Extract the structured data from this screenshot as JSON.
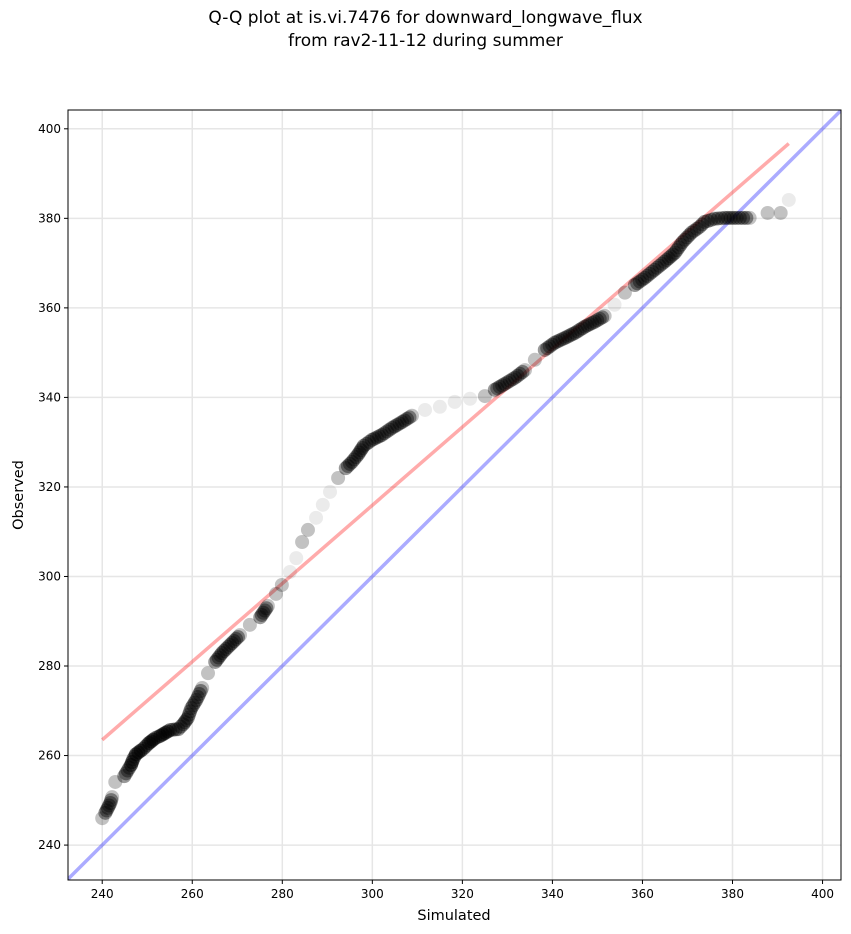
{
  "chart_data": {
    "type": "scatter",
    "title_line1": "Q-Q plot at is.vi.7476 for downward_longwave_flux",
    "title_line2": "from rav2-11-12 during summer",
    "xlabel": "Simulated",
    "ylabel": "Observed",
    "xlim": [
      232.4,
      404.1
    ],
    "ylim": [
      232.2,
      404.2
    ],
    "xticks": [
      240,
      260,
      280,
      300,
      320,
      340,
      360,
      380,
      400
    ],
    "yticks": [
      240,
      260,
      280,
      300,
      320,
      340,
      360,
      380,
      400
    ],
    "grid": true,
    "colors": {
      "points": "#000000",
      "fit_line": "#ff7f7f",
      "identity_line": "#7f7fff",
      "grid": "#e6e6e6"
    },
    "fit_line": {
      "x": [
        240,
        392.5
      ],
      "y": [
        263.5,
        396.7
      ]
    },
    "identity_line": {
      "x": [
        232.4,
        404.1
      ],
      "y": [
        232.4,
        404.1
      ]
    },
    "points": {
      "x": [
        240,
        240.7,
        241.8,
        242.2,
        242.9,
        244.9,
        246.4,
        246.9,
        247.5,
        249.1,
        250.4,
        251.8,
        252.9,
        255.1,
        256.9,
        258,
        259,
        259.8,
        260.9,
        262.2,
        263.5,
        265.1,
        266.6,
        268.4,
        270.6,
        272.8,
        275.1,
        276.8,
        278.6,
        279.9,
        281.7,
        283.1,
        284.4,
        285.7,
        287.5,
        289,
        290.6,
        292.4,
        294.1,
        295.5,
        296.8,
        298.1,
        299.9,
        302.1,
        304.4,
        306.6,
        308.8,
        311.7,
        315,
        318.3,
        321.7,
        325,
        327.2,
        329.4,
        331.7,
        333.9,
        336.1,
        338.3,
        340.5,
        342.8,
        345,
        347.2,
        349.4,
        351.6,
        353.8,
        356.1,
        358.3,
        360.5,
        362.7,
        364.9,
        367.2,
        368.9,
        370.9,
        372.7,
        373.8,
        376,
        378.3,
        380.9,
        383.8,
        387.8,
        390.7,
        392.5
      ],
      "y": [
        246,
        247.2,
        249.4,
        250.7,
        254.1,
        255.4,
        257.9,
        259.2,
        260.3,
        261.5,
        262.8,
        263.9,
        264.4,
        265.7,
        265.9,
        267,
        268.4,
        270.6,
        272.4,
        275.1,
        278.4,
        280.9,
        282.9,
        284.7,
        286.9,
        289.2,
        290.9,
        293.4,
        296.1,
        298.1,
        301,
        304.1,
        307.7,
        310.4,
        313.1,
        316,
        318.9,
        322,
        324.2,
        325.6,
        327.2,
        329.2,
        330.5,
        331.6,
        333.2,
        334.5,
        335.9,
        337.2,
        337.9,
        339,
        339.7,
        340.3,
        341.7,
        343,
        344.4,
        346.1,
        348.4,
        350.6,
        352.2,
        353.3,
        354.4,
        355.8,
        356.9,
        358.2,
        360.7,
        363.4,
        365.1,
        366.7,
        368.5,
        370.3,
        372.3,
        374.7,
        376.8,
        378.1,
        379.2,
        379.9,
        380.1,
        380.1,
        380.1,
        381.2,
        381.2,
        384.1
      ]
    }
  }
}
